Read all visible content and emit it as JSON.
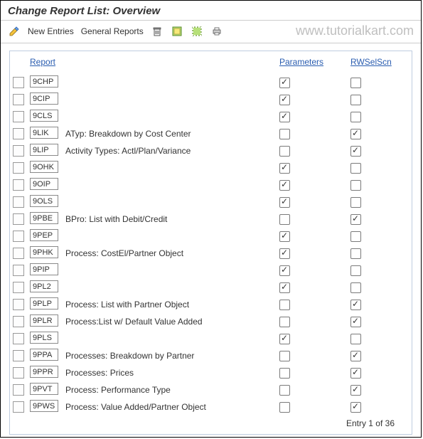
{
  "window": {
    "title": "Change Report List: Overview",
    "watermark": "www.tutorialkart.com"
  },
  "toolbar": {
    "new_entries": "New Entries",
    "general_reports": "General Reports"
  },
  "colors": {
    "link": "#2a5db0",
    "border": "#bfcde0",
    "text": "#333333",
    "watermark": "#bfbfbf"
  },
  "table": {
    "headers": {
      "report": "Report",
      "parameters": "Parameters",
      "rwselscn": "RWSelScn"
    },
    "rows": [
      {
        "code": "9CHP",
        "desc": "",
        "param": true,
        "rws": false
      },
      {
        "code": "9CIP",
        "desc": "",
        "param": true,
        "rws": false
      },
      {
        "code": "9CLS",
        "desc": "",
        "param": true,
        "rws": false
      },
      {
        "code": "9LIK",
        "desc": "ATyp: Breakdown by Cost Center",
        "param": false,
        "rws": true
      },
      {
        "code": "9LIP",
        "desc": "Activity Types: Actl/Plan/Variance",
        "param": false,
        "rws": true
      },
      {
        "code": "9OHK",
        "desc": "",
        "param": true,
        "rws": false
      },
      {
        "code": "9OIP",
        "desc": "",
        "param": true,
        "rws": false
      },
      {
        "code": "9OLS",
        "desc": "",
        "param": true,
        "rws": false
      },
      {
        "code": "9PBE",
        "desc": "BPro: List with Debit/Credit",
        "param": false,
        "rws": true
      },
      {
        "code": "9PEP",
        "desc": "",
        "param": true,
        "rws": false
      },
      {
        "code": "9PHK",
        "desc": "Process: CostEl/Partner Object",
        "param": true,
        "rws": false
      },
      {
        "code": "9PIP",
        "desc": "",
        "param": true,
        "rws": false
      },
      {
        "code": "9PL2",
        "desc": "",
        "param": true,
        "rws": false
      },
      {
        "code": "9PLP",
        "desc": "Process: List with Partner Object",
        "param": false,
        "rws": true
      },
      {
        "code": "9PLR",
        "desc": "Process:List w/ Default Value Added",
        "param": false,
        "rws": true
      },
      {
        "code": "9PLS",
        "desc": "",
        "param": true,
        "rws": false
      },
      {
        "code": "9PPA",
        "desc": "Processes: Breakdown by Partner",
        "param": false,
        "rws": true
      },
      {
        "code": "9PPR",
        "desc": "Processes: Prices",
        "param": false,
        "rws": true
      },
      {
        "code": "9PVT",
        "desc": "Process: Performance Type",
        "param": false,
        "rws": true
      },
      {
        "code": "9PWS",
        "desc": "Process: Value Added/Partner Object",
        "param": false,
        "rws": true
      }
    ],
    "footer": "Entry 1 of 36"
  }
}
